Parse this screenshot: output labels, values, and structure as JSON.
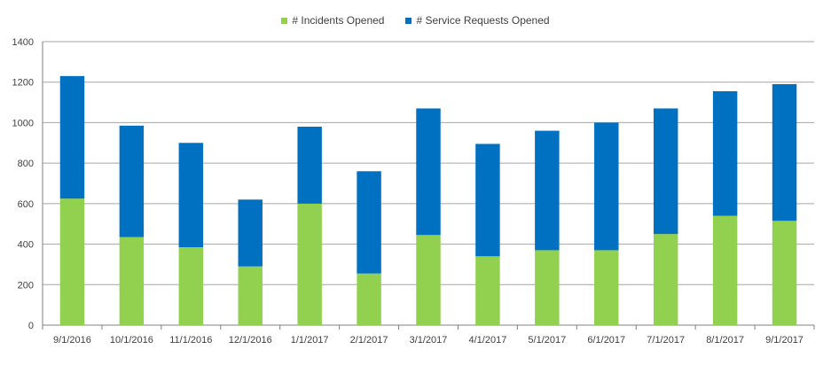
{
  "chart_data": {
    "type": "bar",
    "stacked": true,
    "categories": [
      "9/1/2016",
      "10/1/2016",
      "11/1/2016",
      "12/1/2016",
      "1/1/2017",
      "2/1/2017",
      "3/1/2017",
      "4/1/2017",
      "5/1/2017",
      "6/1/2017",
      "7/1/2017",
      "8/1/2017",
      "9/1/2017"
    ],
    "series": [
      {
        "name": "# Incidents Opened",
        "color": "#92D050",
        "values": [
          625,
          435,
          385,
          290,
          600,
          255,
          445,
          340,
          370,
          370,
          450,
          540,
          515
        ]
      },
      {
        "name": "# Service Requests Opened",
        "color": "#0070C0",
        "values": [
          605,
          550,
          515,
          330,
          380,
          505,
          625,
          555,
          590,
          630,
          620,
          615,
          675
        ]
      }
    ],
    "ylim": [
      0,
      1400
    ],
    "yticks": [
      0,
      200,
      400,
      600,
      800,
      1000,
      1200,
      1400
    ],
    "grid": true,
    "legend_position": "top-center"
  }
}
